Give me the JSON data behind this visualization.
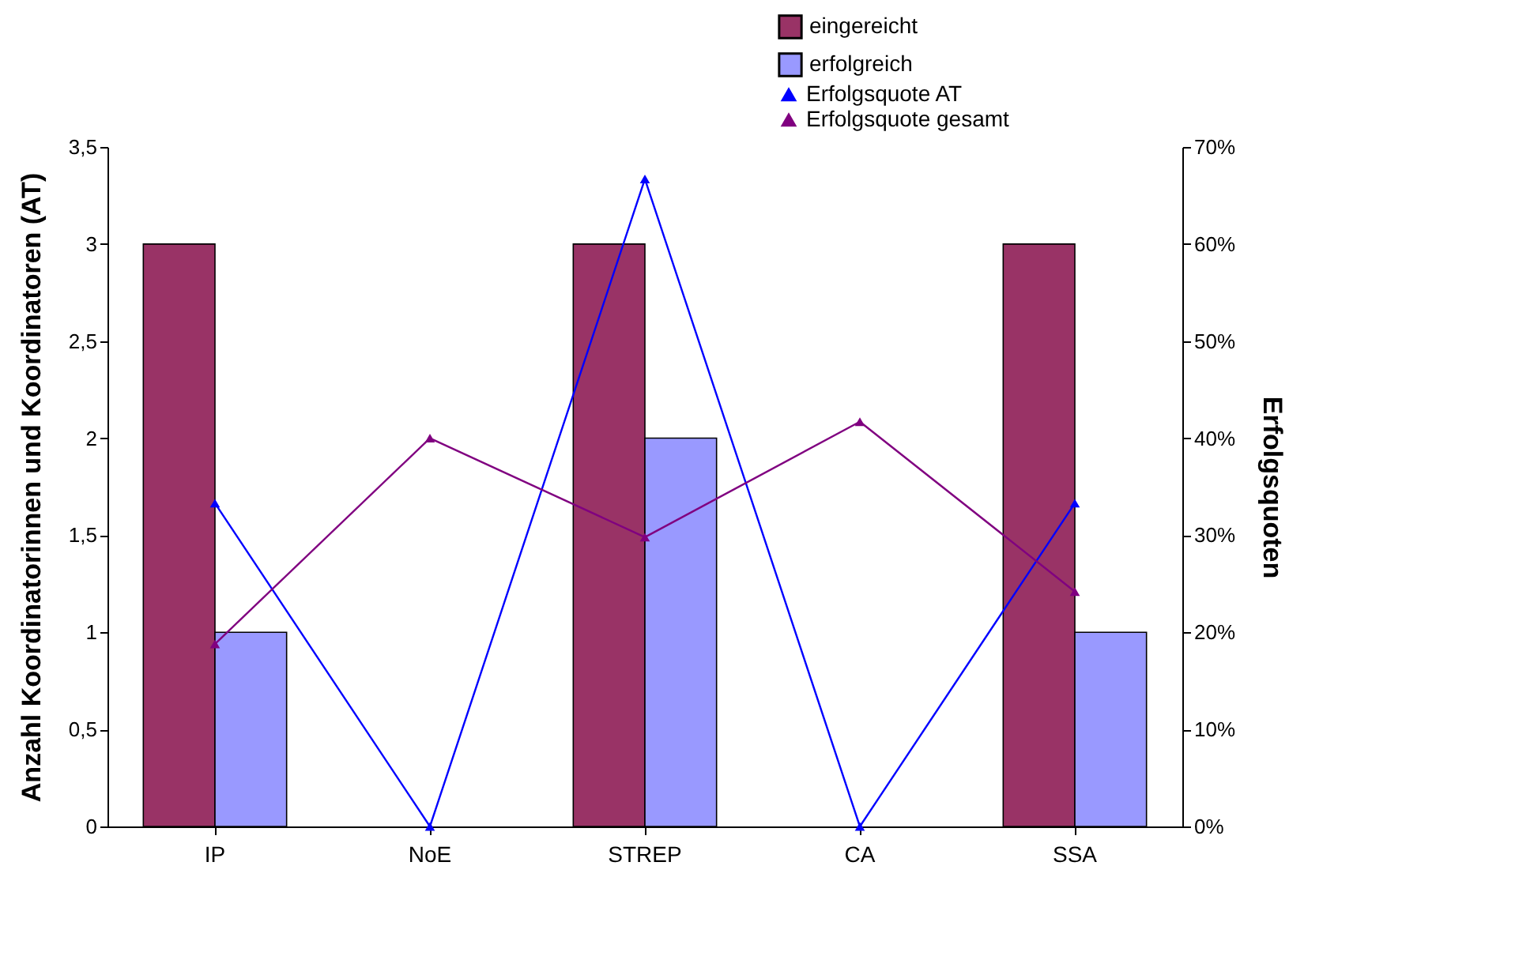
{
  "chart_data": {
    "type": "bar",
    "categories": [
      "IP",
      "NoE",
      "STREP",
      "CA",
      "SSA"
    ],
    "ylabel": "Anzahl Koordinatorinnen und Koordinatoren (AT)",
    "y2label": "Erfolgsquoten",
    "series": [
      {
        "name": "eingereicht",
        "color": "#993366",
        "values": [
          3,
          0,
          3,
          0,
          3
        ]
      },
      {
        "name": "erfolgreich",
        "color": "#9999ff",
        "values": [
          1,
          0,
          2,
          0,
          1
        ]
      },
      {
        "name": "Erfolgsquote AT",
        "type": "line",
        "axis": "y2",
        "color": "#0000ff",
        "values": [
          33.3,
          0,
          66.7,
          0,
          33.3
        ]
      },
      {
        "name": "Erfolgsquote gesamt",
        "type": "line",
        "axis": "y2",
        "color": "#800080",
        "values": [
          18.8,
          40,
          29.8,
          41.7,
          24.2
        ]
      }
    ],
    "ylim": [
      0,
      3.5
    ],
    "yticks": [
      0,
      {
        "value": 0.5,
        "label": "0,5"
      },
      1,
      {
        "value": 1.5,
        "label": "1,5"
      },
      2,
      {
        "value": 2.5,
        "label": "2,5"
      },
      3,
      {
        "value": 3.5,
        "label": "3,5"
      }
    ],
    "y2lim": [
      0,
      70
    ],
    "y2ticks": [
      {
        "value": 0,
        "label": "0%"
      },
      {
        "value": 10,
        "label": "10%"
      },
      {
        "value": 20,
        "label": "20%"
      },
      {
        "value": 30,
        "label": "30%"
      },
      {
        "value": 40,
        "label": "40%"
      },
      {
        "value": 50,
        "label": "50%"
      },
      {
        "value": 60,
        "label": "60%"
      },
      {
        "value": 70,
        "label": "70%"
      }
    ],
    "marker": "triangle",
    "line_style": "solid",
    "grid": false,
    "legend": "top"
  }
}
